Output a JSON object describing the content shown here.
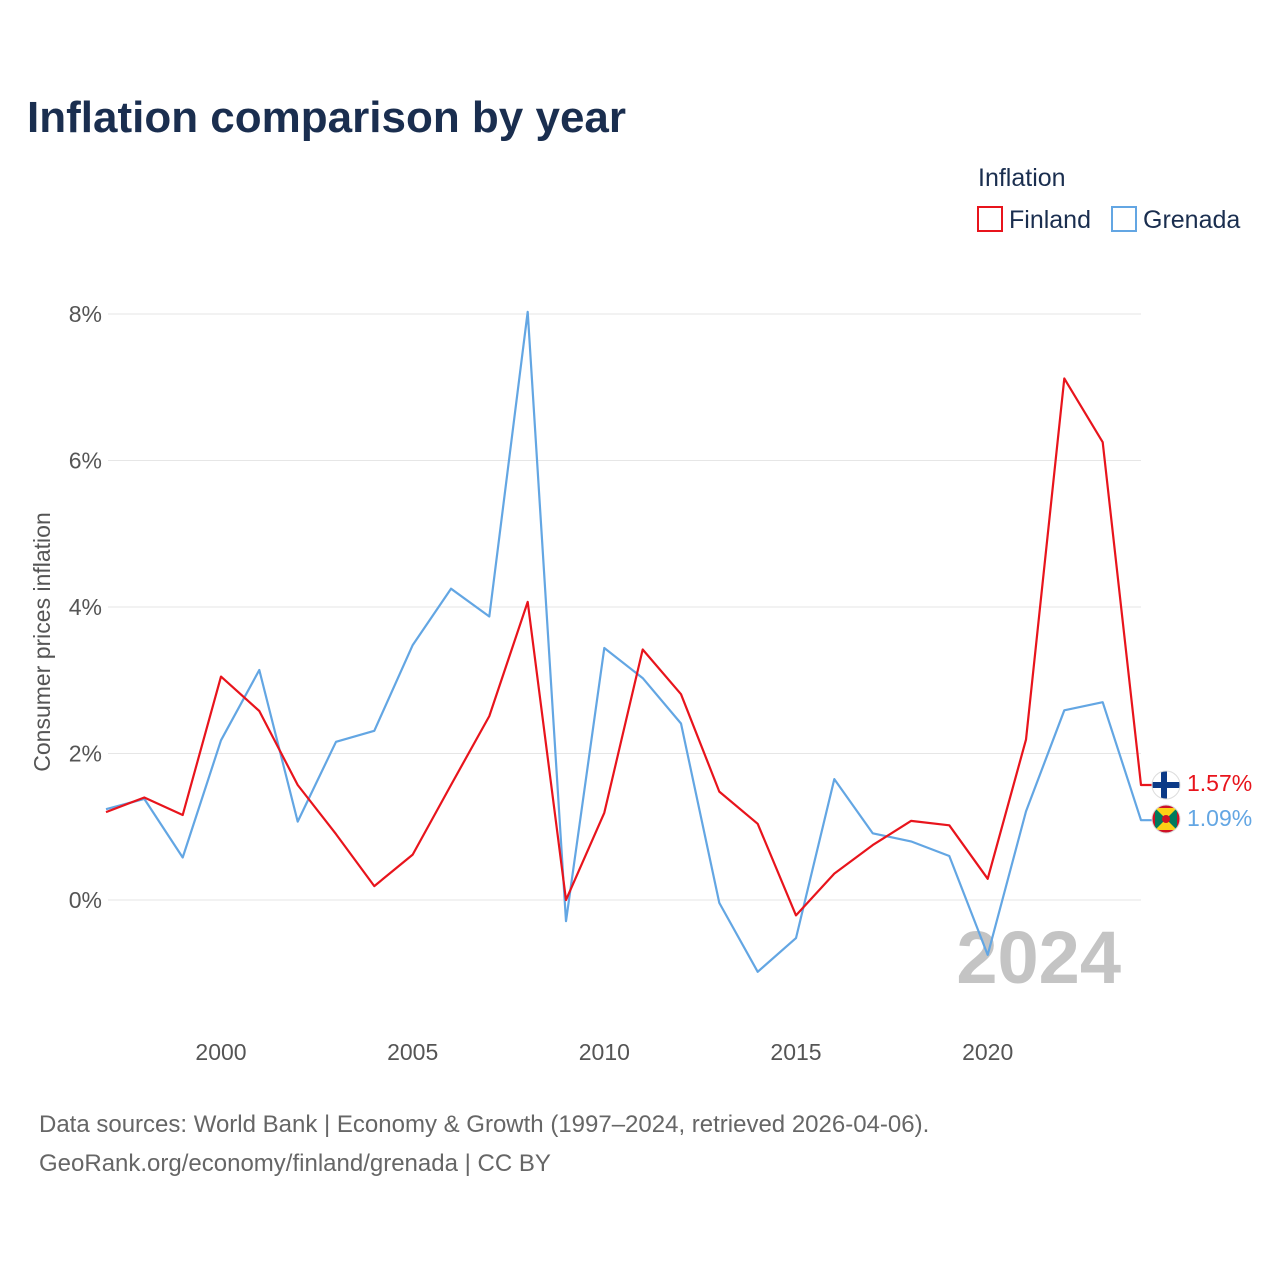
{
  "title": "Inflation comparison by year",
  "legend": {
    "title": "Inflation",
    "items": [
      {
        "label": "Finland",
        "color": "#e8141c"
      },
      {
        "label": "Grenada",
        "color": "#63a6e3"
      }
    ]
  },
  "chart_data": {
    "type": "line",
    "title": "Inflation comparison by year",
    "xlabel": "",
    "ylabel": "Consumer prices inflation",
    "xlim": [
      1997,
      2024
    ],
    "ylim": [
      -1.5,
      8
    ],
    "x_ticks": [
      2000,
      2005,
      2010,
      2015,
      2020
    ],
    "y_ticks": [
      {
        "value": 0,
        "label": "0%"
      },
      {
        "value": 2,
        "label": "2%"
      },
      {
        "value": 4,
        "label": "4%"
      },
      {
        "value": 6,
        "label": "6%"
      },
      {
        "value": 8,
        "label": "8%"
      }
    ],
    "grid": true,
    "x": [
      1997,
      1998,
      1999,
      2000,
      2001,
      2002,
      2003,
      2004,
      2005,
      2006,
      2007,
      2008,
      2009,
      2010,
      2011,
      2012,
      2013,
      2014,
      2015,
      2016,
      2017,
      2018,
      2019,
      2020,
      2021,
      2022,
      2023,
      2024
    ],
    "series": [
      {
        "name": "Finland",
        "color": "#e8141c",
        "end_label": "1.57%",
        "values": [
          1.2,
          1.4,
          1.16,
          3.05,
          2.58,
          1.57,
          0.9,
          0.19,
          0.62,
          1.57,
          2.51,
          4.07,
          0.0,
          1.19,
          3.42,
          2.81,
          1.48,
          1.04,
          -0.21,
          0.36,
          0.75,
          1.08,
          1.02,
          0.29,
          2.19,
          7.12,
          6.25,
          1.57
        ]
      },
      {
        "name": "Grenada",
        "color": "#63a6e3",
        "end_label": "1.09%",
        "values": [
          1.24,
          1.38,
          0.58,
          2.18,
          3.14,
          1.07,
          2.16,
          2.31,
          3.48,
          4.25,
          3.87,
          8.03,
          -0.29,
          3.44,
          3.03,
          2.41,
          -0.04,
          -0.98,
          -0.52,
          1.65,
          0.91,
          0.8,
          0.6,
          -0.75,
          1.21,
          2.59,
          2.7,
          1.09
        ]
      }
    ],
    "year_stamp": "2024",
    "source_lines": [
      "Data sources: World Bank | Economy & Growth (1997–2024, retrieved 2026-04-06).",
      "GeoRank.org/economy/finland/grenada | CC BY"
    ]
  }
}
